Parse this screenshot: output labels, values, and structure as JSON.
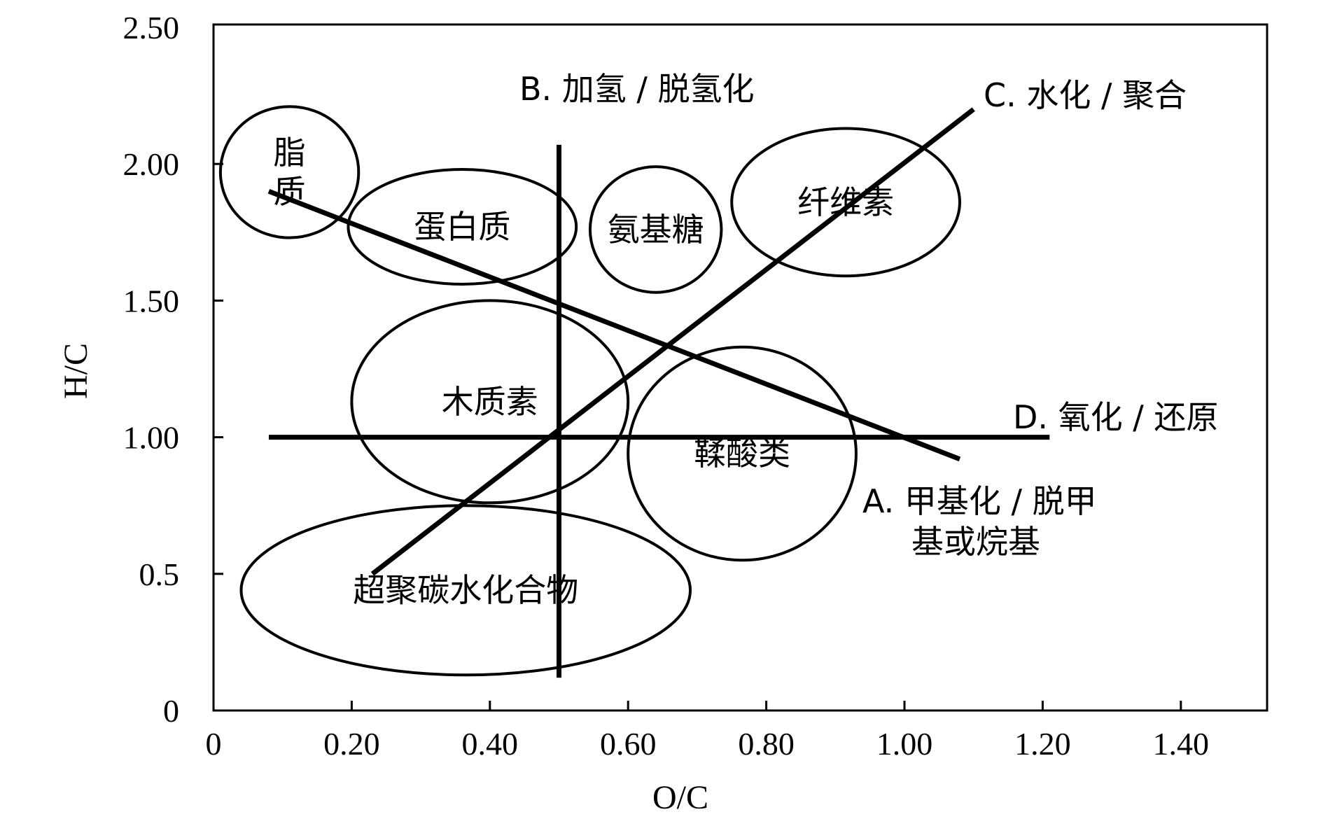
{
  "chart_data": {
    "type": "scatter",
    "xlabel": "O/C",
    "ylabel": "H/C",
    "xlim": [
      0,
      1.52
    ],
    "ylim": [
      0,
      2.5
    ],
    "grid": false,
    "x_ticks": [
      {
        "value": 0,
        "label": "0"
      },
      {
        "value": 0.2,
        "label": "0.20"
      },
      {
        "value": 0.4,
        "label": "0.40"
      },
      {
        "value": 0.6,
        "label": "0.60"
      },
      {
        "value": 0.8,
        "label": "0.80"
      },
      {
        "value": 1.0,
        "label": "1.00"
      },
      {
        "value": 1.2,
        "label": "1.20"
      },
      {
        "value": 1.4,
        "label": "1.40"
      }
    ],
    "y_ticks": [
      {
        "value": 0,
        "label": "0"
      },
      {
        "value": 0.5,
        "label": "0.5"
      },
      {
        "value": 1.0,
        "label": "1.00"
      },
      {
        "value": 1.5,
        "label": "1.50"
      },
      {
        "value": 2.0,
        "label": "2.00"
      },
      {
        "value": 2.5,
        "label": "2.50"
      }
    ],
    "regions": [
      {
        "id": "lipid",
        "label": "脂\n质",
        "center": [
          0.11,
          1.97
        ],
        "radius": [
          0.1,
          0.24
        ]
      },
      {
        "id": "protein",
        "label": "蛋白质",
        "center": [
          0.36,
          1.77
        ],
        "radius": [
          0.165,
          0.21
        ]
      },
      {
        "id": "amino-sugar",
        "label": "氨基糖",
        "center": [
          0.64,
          1.76
        ],
        "radius": [
          0.095,
          0.23
        ]
      },
      {
        "id": "cellulose",
        "label": "纤维素",
        "center": [
          0.915,
          1.86
        ],
        "radius": [
          0.165,
          0.27
        ]
      },
      {
        "id": "lignin",
        "label": "木质素",
        "center": [
          0.4,
          1.13
        ],
        "radius": [
          0.2,
          0.37
        ]
      },
      {
        "id": "tannin",
        "label": "鞣酸类",
        "center": [
          0.765,
          0.94
        ],
        "radius": [
          0.165,
          0.39
        ]
      },
      {
        "id": "condensed-hydrocarbon",
        "label": "超聚碳水化合物",
        "center": [
          0.365,
          0.44
        ],
        "radius": [
          0.325,
          0.31
        ]
      }
    ],
    "reaction_lines": [
      {
        "id": "A",
        "label_lines": [
          "A. 甲基化 / 脱甲",
          "基或烷基"
        ],
        "from": [
          0.08,
          1.9
        ],
        "to": [
          1.08,
          0.92
        ]
      },
      {
        "id": "B",
        "label_lines": [
          "B. 加氢 / 脱氢化"
        ],
        "from": [
          0.5,
          2.07
        ],
        "to": [
          0.5,
          0.12
        ]
      },
      {
        "id": "C",
        "label_lines": [
          "C. 水化 / 聚合"
        ],
        "from": [
          0.23,
          0.5
        ],
        "to": [
          1.1,
          2.2
        ]
      },
      {
        "id": "D",
        "label_lines": [
          "D. 氧化 / 还原"
        ],
        "from": [
          0.08,
          1.0
        ],
        "to": [
          1.21,
          1.0
        ]
      }
    ]
  }
}
